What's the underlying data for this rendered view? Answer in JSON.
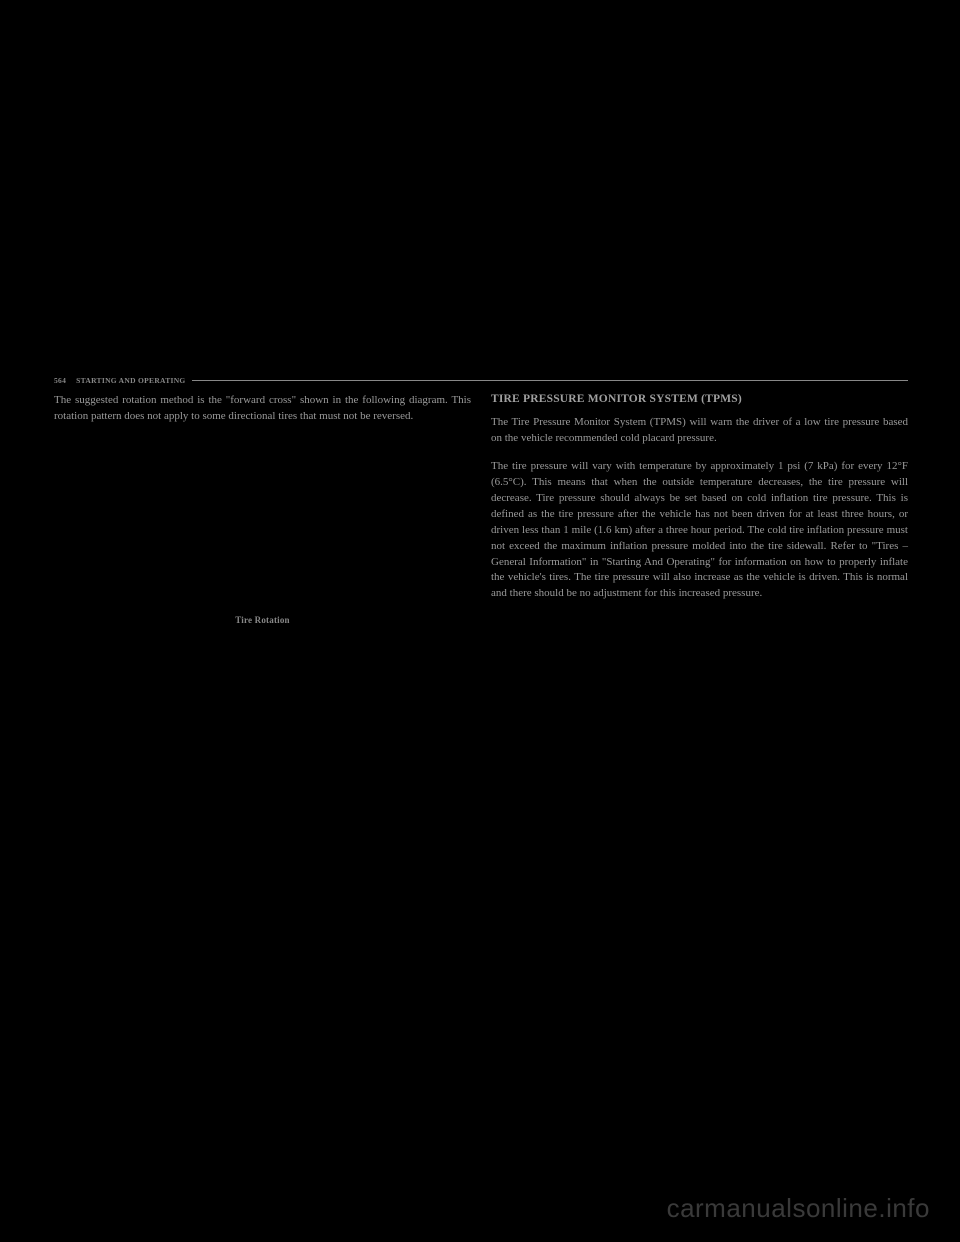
{
  "header": {
    "page_number": "564",
    "section": "STARTING AND OPERATING"
  },
  "left_column": {
    "intro_text": "The suggested rotation method is the \"forward cross\" shown in the following diagram. This rotation pattern does not apply to some directional tires that must not be reversed.",
    "figure_caption": "Tire Rotation"
  },
  "right_column": {
    "heading": "TIRE PRESSURE MONITOR SYSTEM (TPMS)",
    "paragraph_1": "The Tire Pressure Monitor System (TPMS) will warn the driver of a low tire pressure based on the vehicle recommended cold placard pressure.",
    "paragraph_2": "The tire pressure will vary with temperature by approximately 1 psi (7 kPa) for every 12°F (6.5°C). This means that when the outside temperature decreases, the tire pressure will decrease. Tire pressure should always be set based on cold inflation tire pressure. This is defined as the tire pressure after the vehicle has not been driven for at least three hours, or driven less than 1 mile (1.6 km) after a three hour period. The cold tire inflation pressure must not exceed the maximum inflation pressure molded into the tire sidewall. Refer to \"Tires – General Information\" in \"Starting And Operating\" for information on how to properly inflate the vehicle's tires. The tire pressure will also increase as the vehicle is driven. This is normal and there should be no adjustment for this increased pressure."
  },
  "watermark": "carmanualsonline.info",
  "colors": {
    "background": "#000000",
    "text_primary": "#9a9a9a",
    "text_secondary": "#888888",
    "watermark": "#3a3a3a"
  },
  "typography": {
    "body_fontsize": 11,
    "heading_fontsize": 11.5,
    "caption_fontsize": 9,
    "header_fontsize": 7.5,
    "watermark_fontsize": 26
  }
}
